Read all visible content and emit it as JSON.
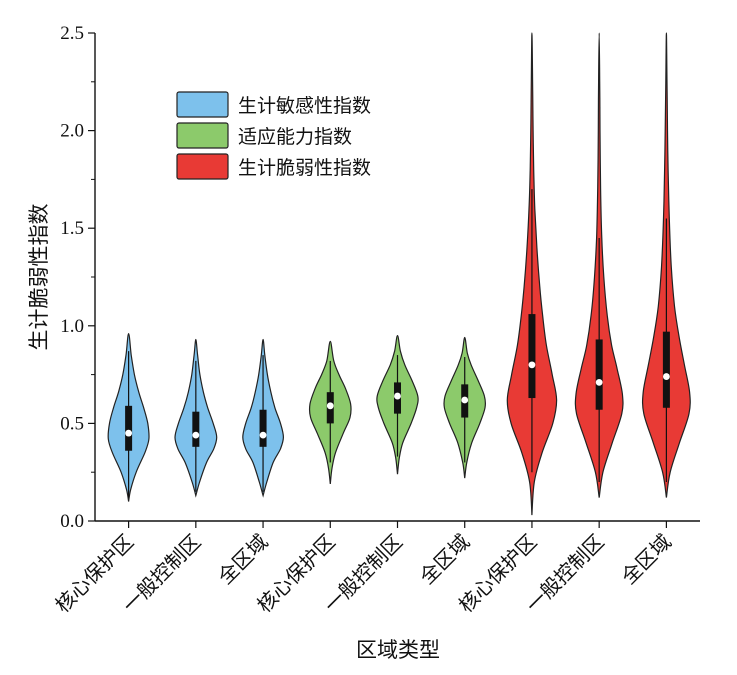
{
  "chart_data": {
    "type": "violin",
    "title": "",
    "xlabel": "区域类型",
    "ylabel": "生计脆弱性指数",
    "ylim": [
      0,
      2.5
    ],
    "yticks": [
      0.0,
      0.5,
      1.0,
      1.5,
      2.0,
      2.5
    ],
    "ytick_labels": [
      "0.0",
      "0.5",
      "1.0",
      "1.5",
      "2.0",
      "2.5"
    ],
    "grid": false,
    "legend_position": "top-left",
    "categories": [
      "核心保护区",
      "一般控制区",
      "全区域",
      "核心保护区",
      "一般控制区",
      "全区域",
      "核心保护区",
      "一般控制区",
      "全区域"
    ],
    "series": [
      {
        "name": "生计敏感性指数",
        "color": "#7dc1ec",
        "violins": [
          {
            "category": "核心保护区",
            "min": 0.1,
            "max": 0.96,
            "q1": 0.36,
            "median": 0.45,
            "q3": 0.59,
            "whisker_low": 0.12,
            "whisker_high": 0.87,
            "density": [
              [
                0.1,
                0.01
              ],
              [
                0.16,
                0.07
              ],
              [
                0.25,
                0.26
              ],
              [
                0.35,
                0.56
              ],
              [
                0.42,
                0.7
              ],
              [
                0.5,
                0.66
              ],
              [
                0.58,
                0.52
              ],
              [
                0.66,
                0.35
              ],
              [
                0.75,
                0.2
              ],
              [
                0.85,
                0.09
              ],
              [
                0.96,
                0.01
              ]
            ]
          },
          {
            "category": "一般控制区",
            "min": 0.13,
            "max": 0.93,
            "q1": 0.38,
            "median": 0.44,
            "q3": 0.56,
            "whisker_low": 0.15,
            "whisker_high": 0.82,
            "density": [
              [
                0.13,
                0.01
              ],
              [
                0.2,
                0.13
              ],
              [
                0.3,
                0.37
              ],
              [
                0.37,
                0.62
              ],
              [
                0.43,
                0.72
              ],
              [
                0.5,
                0.6
              ],
              [
                0.58,
                0.41
              ],
              [
                0.66,
                0.26
              ],
              [
                0.75,
                0.14
              ],
              [
                0.85,
                0.06
              ],
              [
                0.93,
                0.01
              ]
            ]
          },
          {
            "category": "全区域",
            "min": 0.13,
            "max": 0.93,
            "q1": 0.38,
            "median": 0.44,
            "q3": 0.57,
            "whisker_low": 0.15,
            "whisker_high": 0.85,
            "density": [
              [
                0.13,
                0.01
              ],
              [
                0.2,
                0.13
              ],
              [
                0.3,
                0.35
              ],
              [
                0.37,
                0.6
              ],
              [
                0.43,
                0.7
              ],
              [
                0.5,
                0.6
              ],
              [
                0.58,
                0.41
              ],
              [
                0.66,
                0.27
              ],
              [
                0.75,
                0.15
              ],
              [
                0.85,
                0.06
              ],
              [
                0.93,
                0.01
              ]
            ]
          }
        ]
      },
      {
        "name": "适应能力指数",
        "color": "#8cca6b",
        "violins": [
          {
            "category": "核心保护区",
            "min": 0.19,
            "max": 0.92,
            "q1": 0.5,
            "median": 0.59,
            "q3": 0.66,
            "whisker_low": 0.3,
            "whisker_high": 0.82,
            "density": [
              [
                0.19,
                0.01
              ],
              [
                0.27,
                0.06
              ],
              [
                0.35,
                0.18
              ],
              [
                0.45,
                0.45
              ],
              [
                0.53,
                0.68
              ],
              [
                0.6,
                0.7
              ],
              [
                0.68,
                0.52
              ],
              [
                0.75,
                0.3
              ],
              [
                0.82,
                0.12
              ],
              [
                0.92,
                0.01
              ]
            ]
          },
          {
            "category": "一般控制区",
            "min": 0.24,
            "max": 0.95,
            "q1": 0.55,
            "median": 0.64,
            "q3": 0.71,
            "whisker_low": 0.33,
            "whisker_high": 0.85,
            "density": [
              [
                0.24,
                0.01
              ],
              [
                0.32,
                0.06
              ],
              [
                0.4,
                0.18
              ],
              [
                0.5,
                0.47
              ],
              [
                0.58,
                0.66
              ],
              [
                0.64,
                0.7
              ],
              [
                0.72,
                0.5
              ],
              [
                0.8,
                0.25
              ],
              [
                0.87,
                0.1
              ],
              [
                0.95,
                0.01
              ]
            ]
          },
          {
            "category": "全区域",
            "min": 0.22,
            "max": 0.94,
            "q1": 0.53,
            "median": 0.62,
            "q3": 0.7,
            "whisker_low": 0.3,
            "whisker_high": 0.84,
            "density": [
              [
                0.22,
                0.01
              ],
              [
                0.3,
                0.07
              ],
              [
                0.4,
                0.24
              ],
              [
                0.5,
                0.52
              ],
              [
                0.58,
                0.7
              ],
              [
                0.64,
                0.68
              ],
              [
                0.72,
                0.46
              ],
              [
                0.8,
                0.22
              ],
              [
                0.86,
                0.09
              ],
              [
                0.94,
                0.01
              ]
            ]
          }
        ]
      },
      {
        "name": "生计脆弱性指数",
        "color": "#e83a35",
        "violins": [
          {
            "category": "核心保护区",
            "min": 0.03,
            "max": 2.5,
            "q1": 0.63,
            "median": 0.8,
            "q3": 1.06,
            "whisker_low": 0.25,
            "whisker_high": 1.7,
            "density": [
              [
                0.03,
                0.01
              ],
              [
                0.2,
                0.08
              ],
              [
                0.35,
                0.35
              ],
              [
                0.5,
                0.72
              ],
              [
                0.62,
                0.85
              ],
              [
                0.75,
                0.7
              ],
              [
                0.9,
                0.5
              ],
              [
                1.05,
                0.37
              ],
              [
                1.2,
                0.27
              ],
              [
                1.4,
                0.17
              ],
              [
                1.6,
                0.1
              ],
              [
                1.8,
                0.06
              ],
              [
                2.0,
                0.04
              ],
              [
                2.2,
                0.025
              ],
              [
                2.5,
                0.01
              ]
            ]
          },
          {
            "category": "一般控制区",
            "min": 0.12,
            "max": 2.5,
            "q1": 0.57,
            "median": 0.71,
            "q3": 0.93,
            "whisker_low": 0.2,
            "whisker_high": 1.45,
            "density": [
              [
                0.12,
                0.01
              ],
              [
                0.25,
                0.13
              ],
              [
                0.4,
                0.45
              ],
              [
                0.55,
                0.78
              ],
              [
                0.65,
                0.8
              ],
              [
                0.78,
                0.62
              ],
              [
                0.9,
                0.43
              ],
              [
                1.05,
                0.28
              ],
              [
                1.25,
                0.16
              ],
              [
                1.45,
                0.09
              ],
              [
                1.7,
                0.05
              ],
              [
                2.0,
                0.03
              ],
              [
                2.25,
                0.02
              ],
              [
                2.5,
                0.01
              ]
            ]
          },
          {
            "category": "全区域",
            "min": 0.12,
            "max": 2.5,
            "q1": 0.58,
            "median": 0.74,
            "q3": 0.97,
            "whisker_low": 0.2,
            "whisker_high": 1.55,
            "density": [
              [
                0.12,
                0.01
              ],
              [
                0.25,
                0.13
              ],
              [
                0.4,
                0.45
              ],
              [
                0.55,
                0.78
              ],
              [
                0.66,
                0.8
              ],
              [
                0.8,
                0.62
              ],
              [
                0.95,
                0.43
              ],
              [
                1.1,
                0.28
              ],
              [
                1.3,
                0.17
              ],
              [
                1.55,
                0.1
              ],
              [
                1.8,
                0.06
              ],
              [
                2.0,
                0.04
              ],
              [
                2.25,
                0.02
              ],
              [
                2.5,
                0.01
              ]
            ]
          }
        ]
      }
    ]
  }
}
